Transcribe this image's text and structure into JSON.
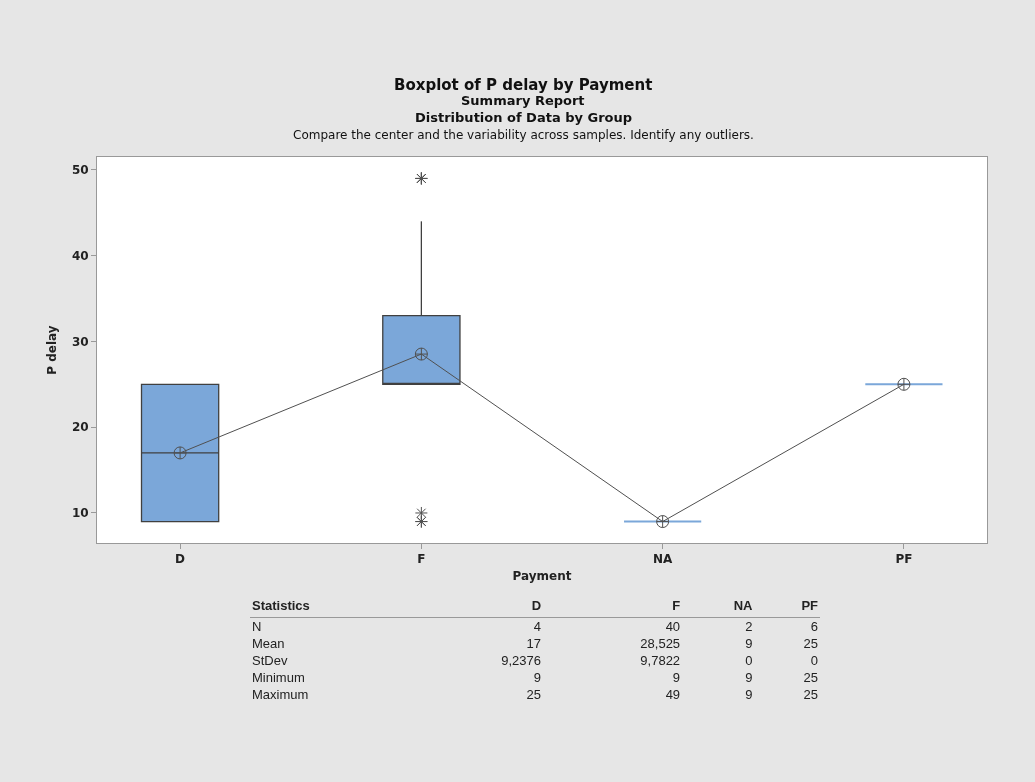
{
  "chart_data": {
    "type": "box",
    "title": "Boxplot of P delay by Payment",
    "subtitle": "Summary Report",
    "xlabel": "Payment",
    "ylabel": "P delay",
    "categories": [
      "D",
      "F",
      "NA",
      "PF"
    ],
    "series": [
      {
        "color": "#7ba7d9",
        "boxes": [
          {
            "low": 9,
            "q1": 9,
            "median": 17,
            "q3": 25,
            "high": 25
          },
          {
            "low": 25,
            "q1": 25,
            "median": 25,
            "q3": 33,
            "high": 44,
            "outliers": [
              9,
              9,
              10,
              49,
              49,
              49
            ]
          },
          {
            "low": 9,
            "q1": 9,
            "median": 9,
            "q3": 9,
            "high": 9
          },
          {
            "low": 25,
            "q1": 25,
            "median": 25,
            "q3": 25,
            "high": 25
          }
        ]
      },
      {
        "type": "line",
        "color": "#505050",
        "values": [
          17,
          28.525,
          9,
          25
        ]
      }
    ],
    "marker": "cross",
    "grid": false,
    "legend": false,
    "ylim": [
      6.5,
      51.5
    ],
    "yticks": [
      10,
      20,
      30,
      40,
      50
    ],
    "annotations": [
      "Distribution of Data by Group",
      "Compare the center and the variability across samples. Identify any outliers.",
      "Statistics",
      "D",
      "F",
      "NA",
      "PF",
      "N",
      "4",
      "40",
      "2",
      "6",
      "Mean",
      "17",
      "28,525",
      "9",
      "25",
      "StDev",
      "9,2376",
      "9,7822",
      "0",
      "0",
      "Minimum",
      "9",
      "9",
      "9",
      "25",
      "Maximum",
      "25",
      "49",
      "9",
      "25"
    ]
  }
}
